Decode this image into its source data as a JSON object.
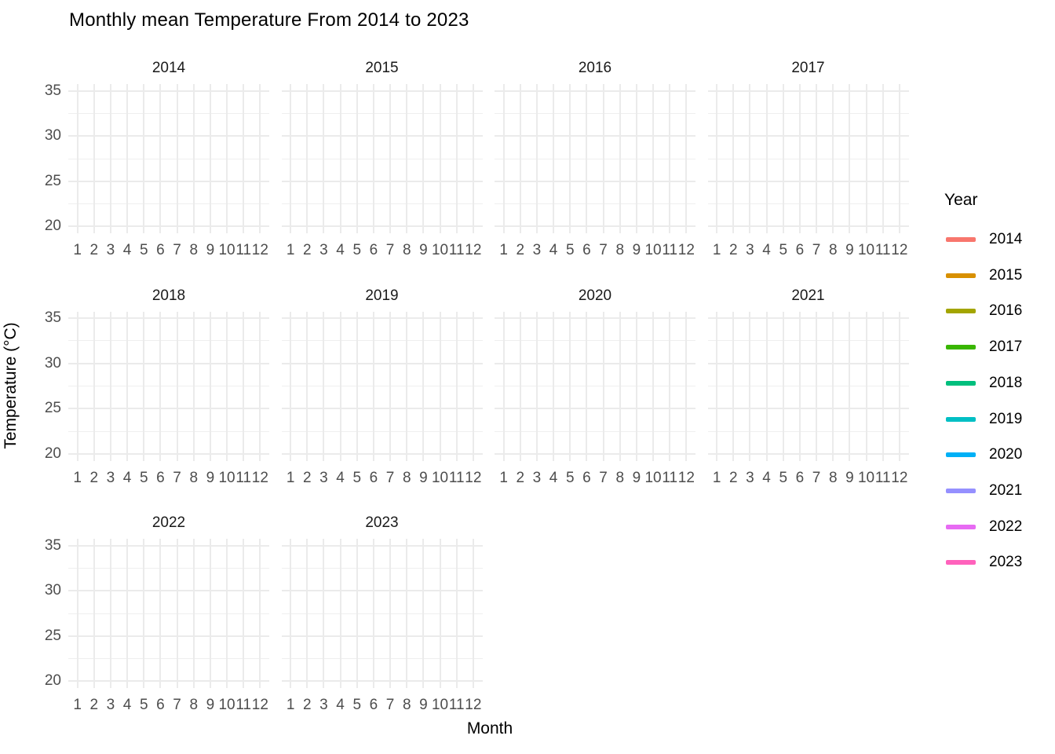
{
  "chart_data": {
    "type": "line",
    "title": "Monthly mean Temperature From 2014 to 2023",
    "xlabel": "Month",
    "ylabel": "Temperature (°C)",
    "facet_variable": "Year",
    "facets": [
      "2014",
      "2015",
      "2016",
      "2017",
      "2018",
      "2019",
      "2020",
      "2021",
      "2022",
      "2023"
    ],
    "x_ticks": [
      1,
      2,
      3,
      4,
      5,
      6,
      7,
      8,
      9,
      10,
      11,
      12
    ],
    "xlim": [
      0.45,
      12.55
    ],
    "y_ticks": [
      35,
      30,
      25,
      20
    ],
    "y_minor_ticks": [
      32.5,
      27.5,
      22.5
    ],
    "ylim": [
      19.25,
      35.75
    ],
    "grid": true,
    "legend_position": "right",
    "legend": {
      "title": "Year",
      "entries": [
        {
          "label": "2014",
          "color": "#F8766D"
        },
        {
          "label": "2015",
          "color": "#D89000"
        },
        {
          "label": "2016",
          "color": "#A3A500"
        },
        {
          "label": "2017",
          "color": "#39B600"
        },
        {
          "label": "2018",
          "color": "#00BF7D"
        },
        {
          "label": "2019",
          "color": "#00BFC4"
        },
        {
          "label": "2020",
          "color": "#00B0F6"
        },
        {
          "label": "2021",
          "color": "#9590FF"
        },
        {
          "label": "2022",
          "color": "#E76BF3"
        },
        {
          "label": "2023",
          "color": "#FF62BC"
        }
      ]
    },
    "series": []
  },
  "styles": {
    "background": "#FFFFFF",
    "grid_major_color": "#EBEBEB",
    "grid_minor_color": "#EFEFEF",
    "axis_text_color": "#4D4D4D",
    "strip_text_color": "#1A1A1A",
    "title_color": "#000000"
  }
}
